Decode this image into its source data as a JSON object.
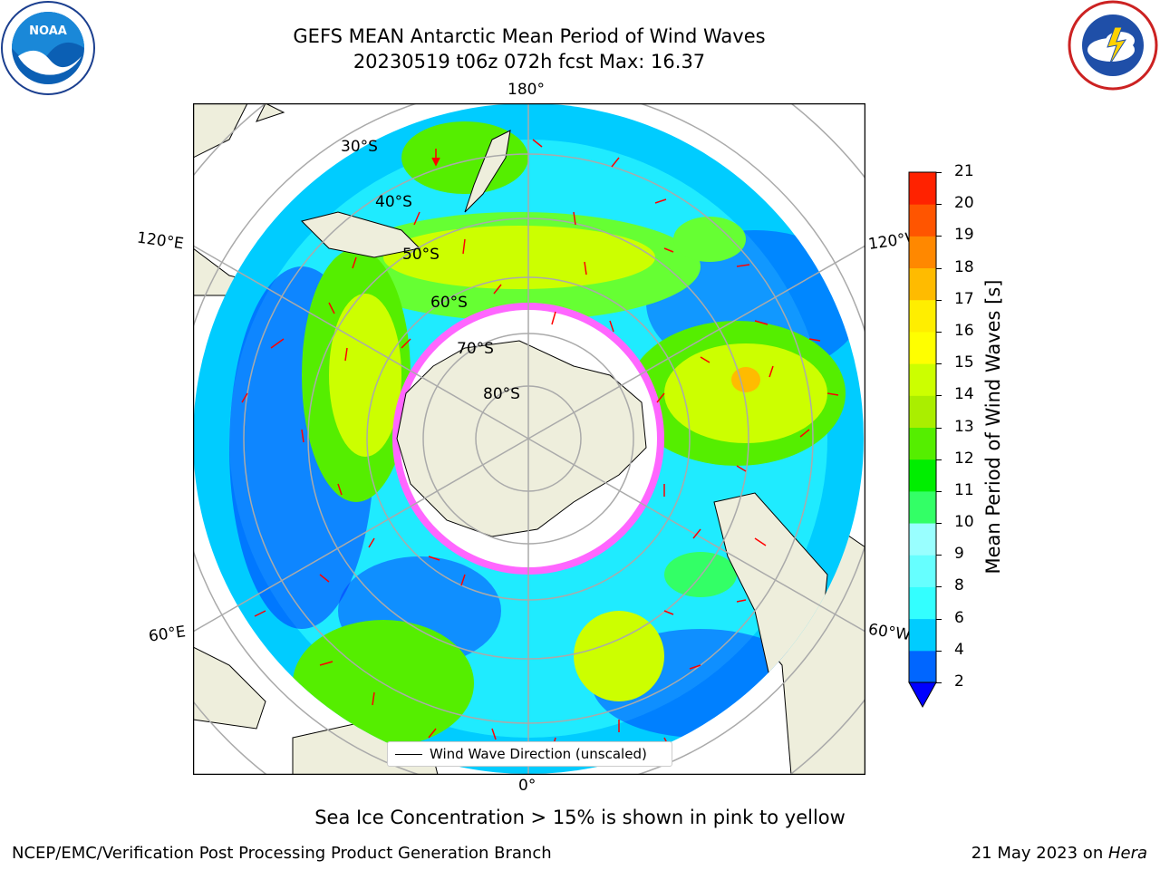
{
  "title": {
    "line1": "GEFS MEAN Antarctic Mean Period of Wind Waves",
    "line2": "20230519 t06z 072h fcst   Max: 16.37"
  },
  "logos": {
    "left": {
      "name": "noaa-logo",
      "text": "NOAA"
    },
    "right": {
      "name": "national-weather-service-logo"
    }
  },
  "map": {
    "projection": "south-polar-stereographic",
    "longitude_labels": {
      "top": "180°",
      "bottom": "0°",
      "left_upper": "120°E",
      "left_lower": "60°E",
      "right_upper": "120°W",
      "right_lower": "60°W"
    },
    "latitude_labels": [
      "30°S",
      "40°S",
      "50°S",
      "60°S",
      "70°S",
      "80°S"
    ],
    "legend_label": "Wind Wave Direction (unscaled)"
  },
  "colorbar": {
    "title": "Mean Period of Wind Waves [s]",
    "ticks": [
      "2",
      "4",
      "6",
      "8",
      "9",
      "10",
      "11",
      "12",
      "13",
      "14",
      "15",
      "16",
      "17",
      "18",
      "19",
      "20",
      "21"
    ],
    "colors": [
      "#0000ff",
      "#0066ff",
      "#00ccff",
      "#33ffff",
      "#66ffff",
      "#99ffff",
      "#33ff66",
      "#00ee00",
      "#55ee00",
      "#aaee00",
      "#ccff00",
      "#ffff00",
      "#ffee00",
      "#ffbb00",
      "#ff8800",
      "#ff5500",
      "#ff2200",
      "#ff0000"
    ]
  },
  "caption": "Sea Ice Concentration > 15% is shown in pink to yellow",
  "footer": {
    "left": "NCEP/EMC/Verification Post Processing Product Generation Branch",
    "right_prefix": "21 May 2023 on ",
    "right_machine": "Hera"
  }
}
